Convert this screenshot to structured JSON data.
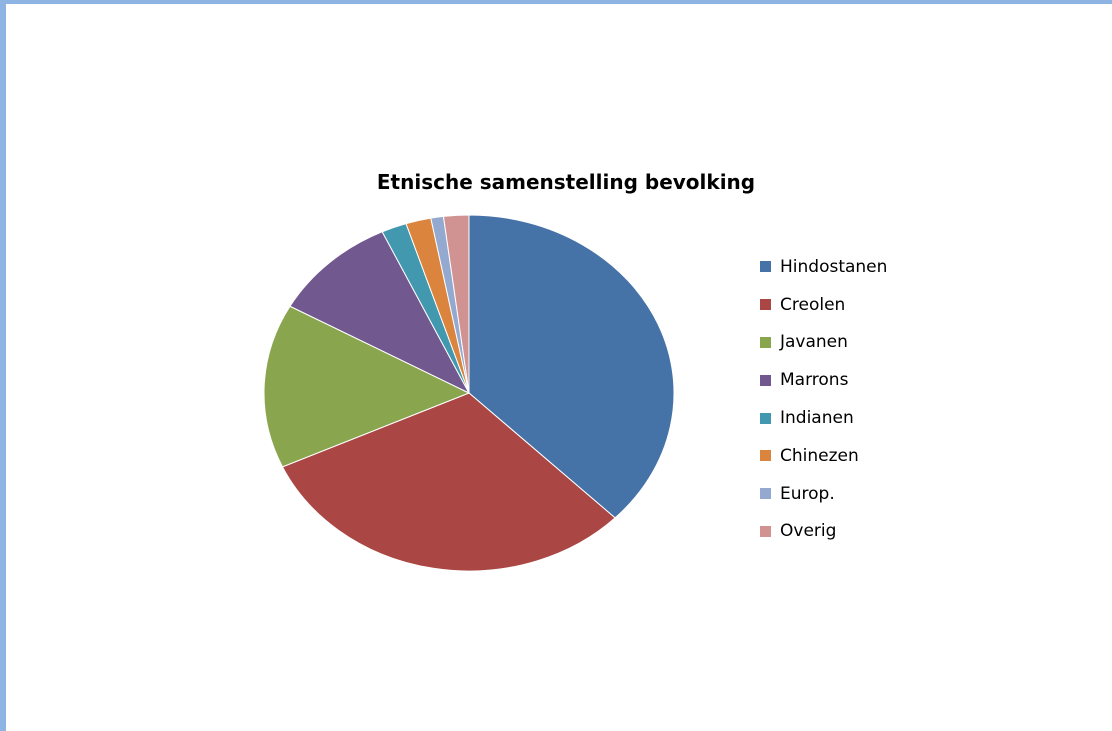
{
  "chart_data": {
    "type": "pie",
    "title": "Etnische samenstelling  bevolking",
    "categories": [
      "Hindostanen",
      "Creolen",
      "Javanen",
      "Marrons",
      "Indianen",
      "Chinezen",
      "Europ.",
      "Overig"
    ],
    "values": [
      37.6,
      31.0,
      15.0,
      10.0,
      2.0,
      2.0,
      1.0,
      2.0
    ],
    "colors": [
      "#4572a7",
      "#aa4643",
      "#89a54e",
      "#71588f",
      "#4198af",
      "#db843d",
      "#93a9cf",
      "#d19392"
    ],
    "legend_position": "right",
    "start_angle_deg": 0,
    "direction": "clockwise"
  }
}
